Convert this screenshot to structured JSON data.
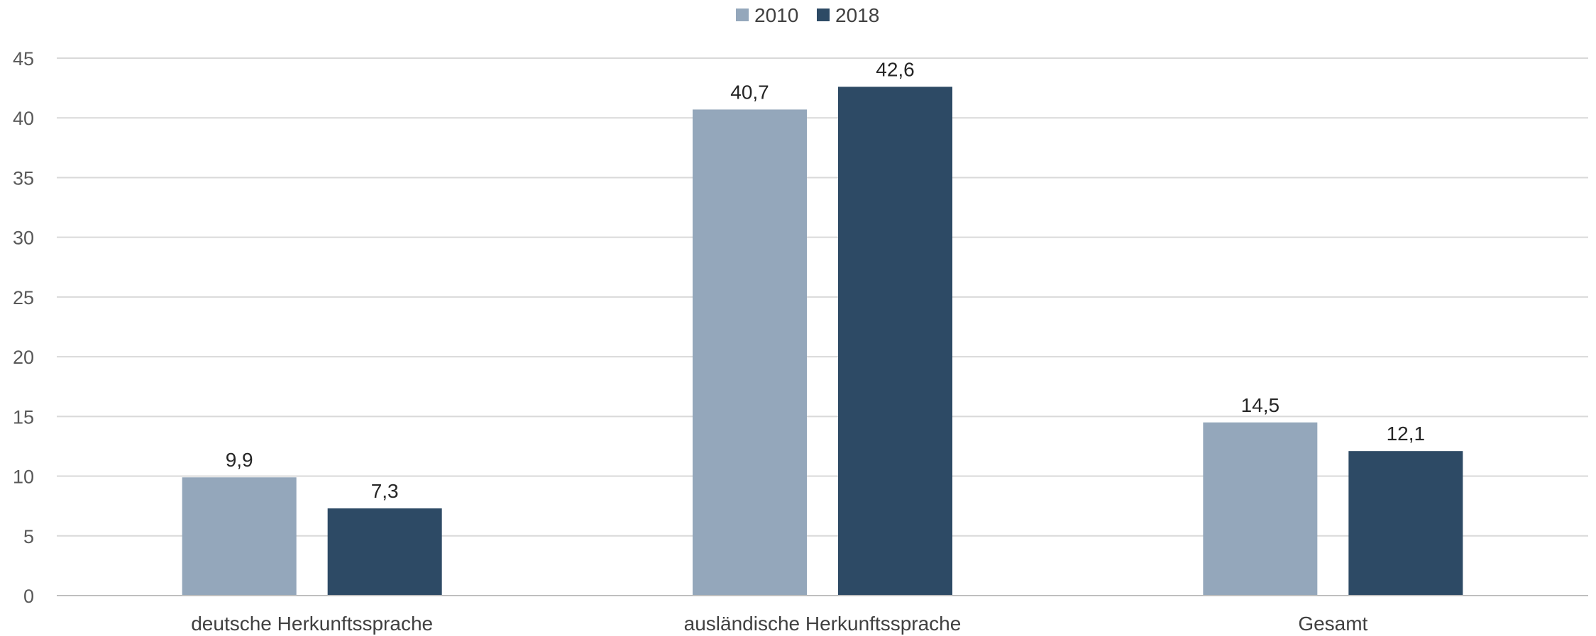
{
  "chart_data": {
    "type": "bar",
    "categories": [
      "deutsche Herkunftssprache",
      "ausländische Herkunftssprache",
      "Gesamt"
    ],
    "series": [
      {
        "name": "2010",
        "values": [
          9.9,
          40.7,
          14.5
        ],
        "labels": [
          "9,9",
          "40,7",
          "14,5"
        ],
        "color": "#94a7bb"
      },
      {
        "name": "2018",
        "values": [
          7.3,
          42.6,
          12.1
        ],
        "labels": [
          "7,3",
          "42,6",
          "12,1"
        ],
        "color": "#2d4a65"
      }
    ],
    "yticks": [
      0,
      5,
      10,
      15,
      20,
      25,
      30,
      35,
      40,
      45
    ],
    "ylim": [
      0,
      45
    ],
    "grid": true,
    "legend": "top-center"
  }
}
